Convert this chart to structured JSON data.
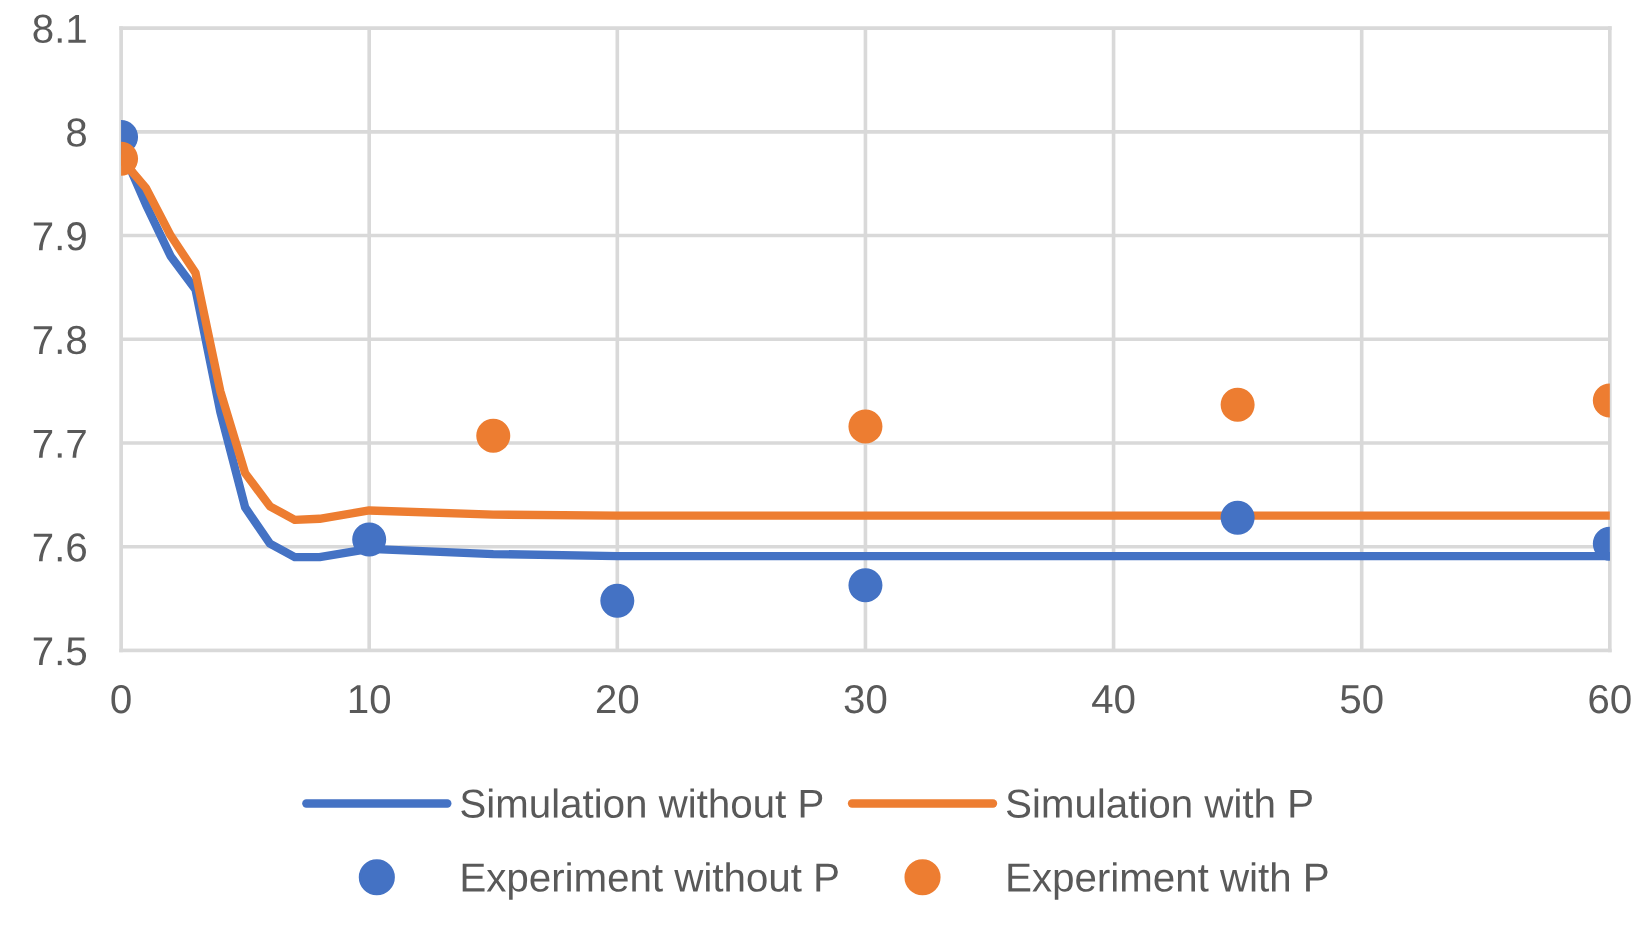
{
  "chart_data": {
    "type": "line",
    "xlim": [
      0,
      60
    ],
    "xticks": [
      0,
      10,
      20,
      30,
      40,
      50,
      60
    ],
    "ylim": [
      7.5,
      8.1
    ],
    "yticks": [
      7.5,
      7.6,
      7.7,
      7.8,
      7.9,
      8,
      8.1
    ],
    "grid": true,
    "legend": "bottom",
    "series": [
      {
        "name": "Simulation without P",
        "color": "#4472c4",
        "marker": "none",
        "line_style": "solid",
        "x": [
          0,
          1,
          2,
          3,
          4,
          5,
          6,
          7,
          8,
          10,
          15,
          20,
          40,
          60
        ],
        "values": [
          7.985,
          7.93,
          7.88,
          7.848,
          7.73,
          7.638,
          7.603,
          7.59,
          7.59,
          7.598,
          7.593,
          7.591,
          7.591,
          7.591
        ]
      },
      {
        "name": "Experiment without P",
        "type": "scatter",
        "color": "#4472c4",
        "marker": "circle",
        "x": [
          0,
          10,
          20,
          30,
          45,
          60
        ],
        "values": [
          7.995,
          7.607,
          7.548,
          7.563,
          7.628,
          7.603
        ]
      },
      {
        "name": "Simulation with P",
        "color": "#ed7d31",
        "marker": "none",
        "line_style": "solid",
        "x": [
          0,
          1,
          2,
          3,
          4,
          5,
          6,
          7,
          8,
          10,
          15,
          20,
          40,
          60
        ],
        "values": [
          7.974,
          7.946,
          7.9,
          7.864,
          7.75,
          7.671,
          7.639,
          7.626,
          7.627,
          7.635,
          7.631,
          7.63,
          7.63,
          7.63
        ]
      },
      {
        "name": "Experiment with P",
        "type": "scatter",
        "color": "#ed7d31",
        "marker": "circle",
        "x": [
          0,
          15,
          30,
          45,
          60
        ],
        "values": [
          7.974,
          7.707,
          7.716,
          7.737,
          7.741
        ]
      }
    ]
  }
}
